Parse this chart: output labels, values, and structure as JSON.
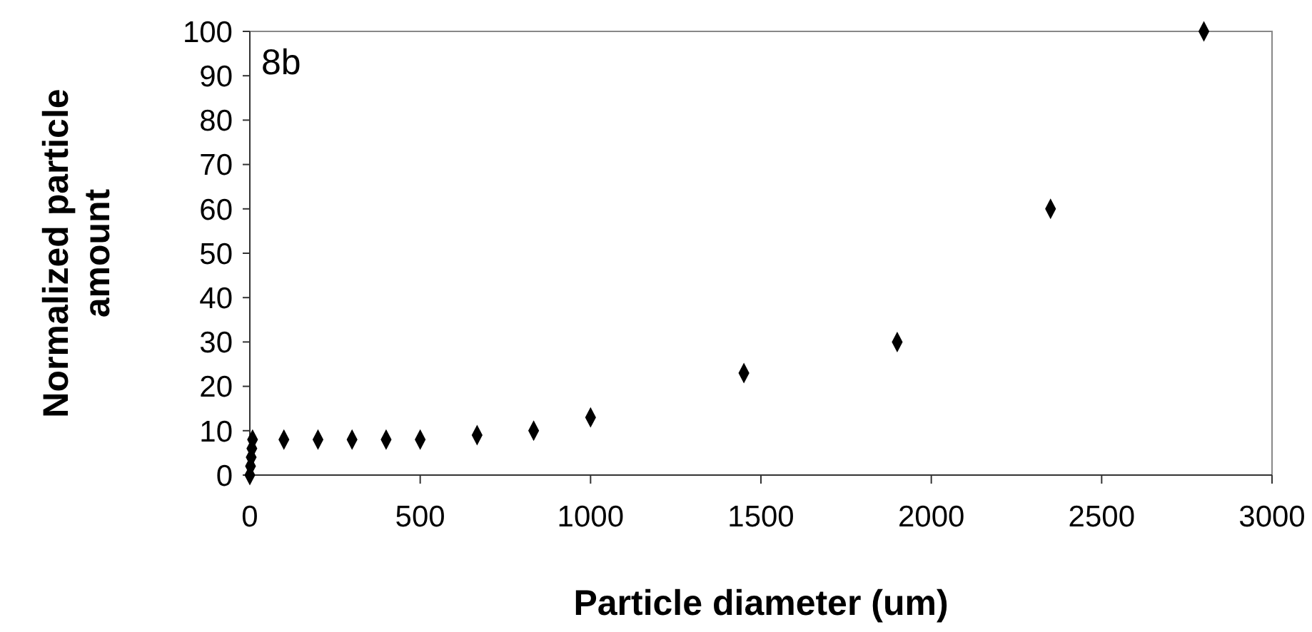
{
  "chart_data": {
    "type": "scatter",
    "xlabel": "Particle diameter (um)",
    "ylabel": "Normalized particle amount",
    "annotations": [
      "8b"
    ],
    "x": [
      0,
      2,
      4,
      6,
      8,
      100,
      200,
      300,
      400,
      500,
      667,
      833,
      1000,
      1450,
      1900,
      2350,
      2800
    ],
    "series": [
      {
        "color": "#000000",
        "values": [
          0,
          2,
          4,
          6,
          8,
          8,
          8,
          8,
          8,
          8,
          9,
          10,
          13,
          23,
          30,
          60,
          100
        ]
      }
    ],
    "xlim": [
      0,
      3000
    ],
    "xticks": [
      0,
      500,
      1000,
      1500,
      2000,
      2500,
      3000
    ],
    "ylim": [
      0,
      100
    ],
    "yticks": [
      0,
      10,
      20,
      30,
      40,
      50,
      60,
      70,
      80,
      90,
      100
    ],
    "marker": "diamond",
    "grid": false
  }
}
